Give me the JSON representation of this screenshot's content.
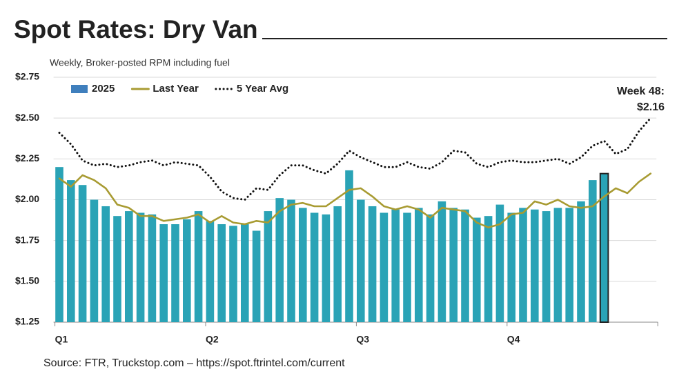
{
  "chart_data": {
    "type": "bar-line",
    "title": "Spot Rates: Dry Van",
    "subtitle": "Weekly, Broker-posted RPM including fuel",
    "source": "Source: FTR, Truckstop.com – https://spot.ftrintel.com/current",
    "annotation": [
      "Week 48:",
      "$2.16"
    ],
    "categories": [
      "Q1",
      null,
      null,
      null,
      null,
      null,
      null,
      null,
      null,
      null,
      null,
      null,
      null,
      "Q2",
      null,
      null,
      null,
      null,
      null,
      null,
      null,
      null,
      null,
      null,
      null,
      null,
      "Q3",
      null,
      null,
      null,
      null,
      null,
      null,
      null,
      null,
      null,
      null,
      null,
      null,
      "Q4",
      null,
      null,
      null,
      null,
      null,
      null,
      null,
      null,
      null,
      null,
      null,
      null
    ],
    "series": [
      {
        "name": "2025",
        "kind": "bar",
        "color": "#2aa3b6",
        "values": [
          2.2,
          2.12,
          2.09,
          2.0,
          1.96,
          1.9,
          1.93,
          1.92,
          1.91,
          1.85,
          1.85,
          1.88,
          1.93,
          1.87,
          1.85,
          1.84,
          1.85,
          1.81,
          1.93,
          2.01,
          2.0,
          1.95,
          1.92,
          1.91,
          1.96,
          2.18,
          2.0,
          1.96,
          1.92,
          1.94,
          1.92,
          1.95,
          1.91,
          1.99,
          1.95,
          1.94,
          1.89,
          1.9,
          1.97,
          1.92,
          1.95,
          1.94,
          1.93,
          1.95,
          1.95,
          1.99,
          2.12,
          2.16,
          null,
          null,
          null,
          null
        ]
      },
      {
        "name": "Last Year",
        "kind": "line",
        "color": "#a89b32",
        "values": [
          2.13,
          2.08,
          2.15,
          2.12,
          2.07,
          1.97,
          1.95,
          1.9,
          1.9,
          1.87,
          1.88,
          1.89,
          1.91,
          1.86,
          1.9,
          1.86,
          1.85,
          1.87,
          1.86,
          1.93,
          1.97,
          1.98,
          1.96,
          1.96,
          2.01,
          2.06,
          2.07,
          2.02,
          1.96,
          1.94,
          1.96,
          1.94,
          1.89,
          1.95,
          1.94,
          1.93,
          1.86,
          1.83,
          1.85,
          1.91,
          1.92,
          1.99,
          1.97,
          2.0,
          1.96,
          1.95,
          1.96,
          2.02,
          2.07,
          2.04,
          2.11,
          2.16
        ]
      },
      {
        "name": "5 Year Avg",
        "kind": "dotted",
        "color": "#111111",
        "values": [
          2.41,
          2.34,
          2.24,
          2.21,
          2.22,
          2.2,
          2.21,
          2.23,
          2.24,
          2.21,
          2.23,
          2.22,
          2.21,
          2.14,
          2.05,
          2.01,
          2.0,
          2.07,
          2.06,
          2.15,
          2.21,
          2.21,
          2.18,
          2.16,
          2.22,
          2.3,
          2.26,
          2.23,
          2.2,
          2.2,
          2.23,
          2.2,
          2.19,
          2.23,
          2.3,
          2.29,
          2.22,
          2.2,
          2.23,
          2.24,
          2.23,
          2.23,
          2.24,
          2.25,
          2.22,
          2.26,
          2.33,
          2.36,
          2.28,
          2.31,
          2.42,
          2.5
        ]
      }
    ],
    "ylim": [
      1.25,
      2.75
    ],
    "yticks": [
      {
        "value": 1.25,
        "label": "$1.25"
      },
      {
        "value": 1.5,
        "label": "$1.50"
      },
      {
        "value": 1.75,
        "label": "$1.75"
      },
      {
        "value": 2.0,
        "label": "$2.00"
      },
      {
        "value": 2.25,
        "label": "$2.25"
      },
      {
        "value": 2.5,
        "label": "$2.50"
      },
      {
        "value": 2.75,
        "label": "$2.75"
      }
    ],
    "grid": true,
    "legend": "top-left"
  }
}
